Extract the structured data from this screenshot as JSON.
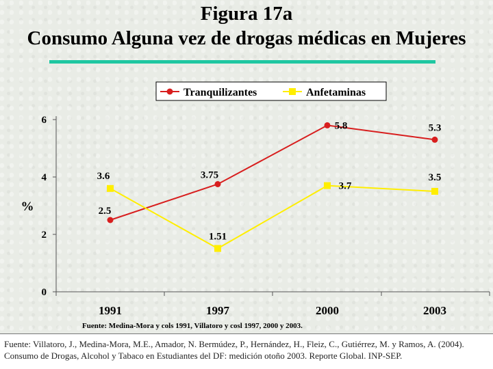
{
  "header": {
    "title_line1": "Figura 17a",
    "title_line2": "Consumo Alguna vez de drogas médicas en Mujeres"
  },
  "chart_data": {
    "type": "line",
    "categories": [
      "1991",
      "1997",
      "2000",
      "2003"
    ],
    "series": [
      {
        "name": "Tranquilizantes",
        "color": "#d81e1e",
        "marker": "circle",
        "values": [
          2.5,
          3.75,
          5.8,
          5.3
        ],
        "labels": [
          "2.5",
          "3.75",
          "5.8",
          "5.3"
        ]
      },
      {
        "name": "Anfetaminas",
        "color": "#ffee00",
        "marker": "square",
        "values": [
          3.6,
          1.51,
          3.7,
          3.5
        ],
        "labels": [
          "3.6",
          "1.51",
          "3.7",
          "3.5"
        ]
      }
    ],
    "ylabel": "%",
    "ylim": [
      0,
      6
    ],
    "yticks": [
      "0",
      "2",
      "4",
      "6"
    ],
    "legend": "top",
    "grid": false
  },
  "caption": "Fuente: Medina-Mora y cols 1991, Villatoro y cosl 1997, 2000 y 2003.",
  "footer": "Fuente: Villatoro, J., Medina-Mora, M.E., Amador, N. Bermúdez, P., Hernández, H., Fleiz, C., Gutiérrez, M. y Ramos, A. (2004). Consumo de Drogas, Alcohol y Tabaco en Estudiantes del DF: medición otoño 2003. Reporte Global. INP-SEP."
}
